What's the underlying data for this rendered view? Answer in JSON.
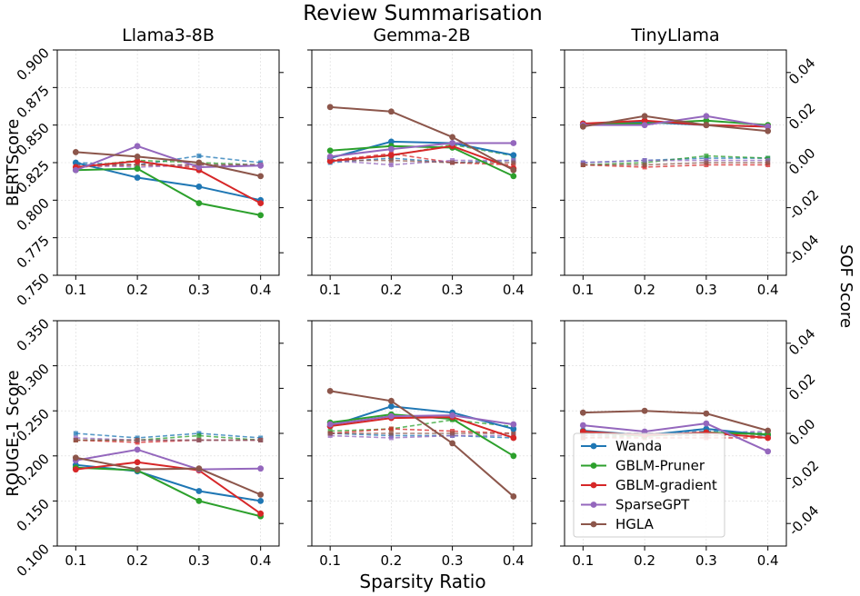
{
  "title": "Review Summarisation",
  "xlabel": "Sparsity Ratio",
  "right_label": "SOF Score",
  "methods": [
    {
      "name": "Wanda",
      "color": "#1f77b4"
    },
    {
      "name": "GBLM-Pruner",
      "color": "#2ca02c"
    },
    {
      "name": "GBLM-gradient",
      "color": "#d62728"
    },
    {
      "name": "SparseGPT",
      "color": "#9467bd"
    },
    {
      "name": "HGLA",
      "color": "#8c564b"
    }
  ],
  "chart_data": {
    "type": "line",
    "x": [
      0.1,
      0.2,
      0.3,
      0.4
    ],
    "x_ticks": [
      "0.1",
      "0.2",
      "0.3",
      "0.4"
    ],
    "col_titles": [
      "Llama3-8B",
      "Gemma-2B",
      "TinyLlama"
    ],
    "rows": [
      {
        "ylabel": "BERTScore",
        "ylim": [
          0.75,
          0.9
        ],
        "y_ticks": [
          "0.750",
          "0.775",
          "0.800",
          "0.825",
          "0.850",
          "0.875",
          "0.900"
        ],
        "y_tick_values": [
          0.75,
          0.775,
          0.8,
          0.825,
          0.85,
          0.875,
          0.9
        ],
        "sof_ylim": [
          -0.05,
          0.05
        ],
        "sof_ticks": [
          "-0.04",
          "-0.02",
          "0.00",
          "0.02",
          "0.04"
        ],
        "sof_tick_values": [
          -0.04,
          -0.02,
          0.0,
          0.02,
          0.04
        ],
        "panels": [
          {
            "series": [
              {
                "name": "Wanda",
                "values": [
                  0.825,
                  0.815,
                  0.809,
                  0.8
                ]
              },
              {
                "name": "GBLM-Pruner",
                "values": [
                  0.82,
                  0.821,
                  0.798,
                  0.79
                ]
              },
              {
                "name": "GBLM-gradient",
                "values": [
                  0.822,
                  0.826,
                  0.82,
                  0.798
                ]
              },
              {
                "name": "SparseGPT",
                "values": [
                  0.82,
                  0.836,
                  0.822,
                  0.823
                ]
              },
              {
                "name": "HGLA",
                "values": [
                  0.832,
                  0.829,
                  0.825,
                  0.816
                ]
              }
            ],
            "sof": [
              {
                "name": "Wanda",
                "values": [
                  0.0,
                  -0.001,
                  0.003,
                  0.0
                ]
              },
              {
                "name": "GBLM-Pruner",
                "values": [
                  -0.002,
                  0.001,
                  0.0,
                  -0.001
                ]
              },
              {
                "name": "GBLM-gradient",
                "values": [
                  -0.002,
                  -0.001,
                  -0.002,
                  -0.001
                ]
              },
              {
                "name": "SparseGPT",
                "values": [
                  -0.001,
                  -0.002,
                  -0.001,
                  -0.001
                ]
              },
              {
                "name": "HGLA",
                "values": [
                  -0.001,
                  -0.001,
                  -0.001,
                  -0.001
                ]
              }
            ]
          },
          {
            "series": [
              {
                "name": "Wanda",
                "values": [
                  0.828,
                  0.839,
                  0.838,
                  0.83
                ]
              },
              {
                "name": "GBLM-Pruner",
                "values": [
                  0.833,
                  0.836,
                  0.835,
                  0.816
                ]
              },
              {
                "name": "GBLM-gradient",
                "values": [
                  0.826,
                  0.83,
                  0.836,
                  0.821
                ]
              },
              {
                "name": "SparseGPT",
                "values": [
                  0.829,
                  0.834,
                  0.838,
                  0.838
                ]
              },
              {
                "name": "HGLA",
                "values": [
                  0.862,
                  0.859,
                  0.842,
                  0.82
                ]
              }
            ],
            "sof": [
              {
                "name": "Wanda",
                "values": [
                  0.0,
                  0.002,
                  0.0,
                  0.001
                ]
              },
              {
                "name": "GBLM-Pruner",
                "values": [
                  0.001,
                  0.003,
                  0.008,
                  0.003
                ]
              },
              {
                "name": "GBLM-gradient",
                "values": [
                  0.001,
                  0.004,
                  0.0,
                  -0.001
                ]
              },
              {
                "name": "SparseGPT",
                "values": [
                  0.001,
                  -0.001,
                  0.001,
                  0.001
                ]
              },
              {
                "name": "HGLA",
                "values": [
                  0.001,
                  0.001,
                  0.0,
                  0.0
                ]
              }
            ]
          },
          {
            "series": [
              {
                "name": "Wanda",
                "values": [
                  0.85,
                  0.852,
                  0.85,
                  0.849
                ]
              },
              {
                "name": "GBLM-Pruner",
                "values": [
                  0.851,
                  0.851,
                  0.853,
                  0.85
                ]
              },
              {
                "name": "GBLM-gradient",
                "values": [
                  0.851,
                  0.853,
                  0.85,
                  0.849
                ]
              },
              {
                "name": "SparseGPT",
                "values": [
                  0.85,
                  0.85,
                  0.856,
                  0.849
                ]
              },
              {
                "name": "HGLA",
                "values": [
                  0.849,
                  0.856,
                  0.85,
                  0.846
                ]
              }
            ],
            "sof": [
              {
                "name": "Wanda",
                "values": [
                  0.0,
                  0.001,
                  0.002,
                  0.002
                ]
              },
              {
                "name": "GBLM-Pruner",
                "values": [
                  -0.001,
                  0.0,
                  0.003,
                  0.002
                ]
              },
              {
                "name": "GBLM-gradient",
                "values": [
                  -0.001,
                  -0.002,
                  -0.001,
                  -0.001
                ]
              },
              {
                "name": "SparseGPT",
                "values": [
                  0.0,
                  0.001,
                  0.001,
                  0.001
                ]
              },
              {
                "name": "HGLA",
                "values": [
                  -0.001,
                  -0.001,
                  0.0,
                  0.0
                ]
              }
            ]
          }
        ]
      },
      {
        "ylabel": "ROUGE-1 Score",
        "ylim": [
          0.1,
          0.35
        ],
        "y_ticks": [
          "0.100",
          "0.150",
          "0.200",
          "0.250",
          "0.300",
          "0.350"
        ],
        "y_tick_values": [
          0.1,
          0.15,
          0.2,
          0.25,
          0.3,
          0.35
        ],
        "sof_ylim": [
          -0.05,
          0.05
        ],
        "sof_ticks": [
          "-0.04",
          "-0.02",
          "0.00",
          "0.02",
          "0.04"
        ],
        "sof_tick_values": [
          -0.04,
          -0.02,
          0.0,
          0.02,
          0.04
        ],
        "panels": [
          {
            "series": [
              {
                "name": "Wanda",
                "values": [
                  0.19,
                  0.183,
                  0.161,
                  0.15
                ]
              },
              {
                "name": "GBLM-Pruner",
                "values": [
                  0.187,
                  0.184,
                  0.15,
                  0.133
                ]
              },
              {
                "name": "GBLM-gradient",
                "values": [
                  0.185,
                  0.193,
                  0.184,
                  0.136
                ]
              },
              {
                "name": "SparseGPT",
                "values": [
                  0.195,
                  0.207,
                  0.185,
                  0.186
                ]
              },
              {
                "name": "HGLA",
                "values": [
                  0.198,
                  0.185,
                  0.186,
                  0.157
                ]
              }
            ],
            "sof": [
              {
                "name": "Wanda",
                "values": [
                  0.0,
                  -0.002,
                  0.0,
                  -0.002
                ]
              },
              {
                "name": "GBLM-Pruner",
                "values": [
                  -0.003,
                  -0.003,
                  -0.001,
                  -0.003
                ]
              },
              {
                "name": "GBLM-gradient",
                "values": [
                  -0.003,
                  -0.004,
                  -0.003,
                  -0.003
                ]
              },
              {
                "name": "SparseGPT",
                "values": [
                  -0.002,
                  -0.003,
                  -0.003,
                  -0.003
                ]
              },
              {
                "name": "HGLA",
                "values": [
                  -0.003,
                  -0.003,
                  -0.003,
                  -0.003
                ]
              }
            ]
          },
          {
            "series": [
              {
                "name": "Wanda",
                "values": [
                  0.233,
                  0.255,
                  0.248,
                  0.23
                ]
              },
              {
                "name": "GBLM-Pruner",
                "values": [
                  0.237,
                  0.246,
                  0.241,
                  0.2
                ]
              },
              {
                "name": "GBLM-gradient",
                "values": [
                  0.233,
                  0.242,
                  0.243,
                  0.22
                ]
              },
              {
                "name": "SparseGPT",
                "values": [
                  0.235,
                  0.244,
                  0.245,
                  0.235
                ]
              },
              {
                "name": "HGLA",
                "values": [
                  0.272,
                  0.261,
                  0.214,
                  0.155
                ]
              }
            ],
            "sof": [
              {
                "name": "Wanda",
                "values": [
                  0.0,
                  -0.001,
                  -0.001,
                  -0.002
                ]
              },
              {
                "name": "GBLM-Pruner",
                "values": [
                  0.001,
                  0.002,
                  0.006,
                  0.003
                ]
              },
              {
                "name": "GBLM-gradient",
                "values": [
                  0.0,
                  0.002,
                  0.001,
                  0.0
                ]
              },
              {
                "name": "SparseGPT",
                "values": [
                  -0.001,
                  -0.002,
                  -0.001,
                  -0.001
                ]
              },
              {
                "name": "HGLA",
                "values": [
                  0.0,
                  0.0,
                  0.0,
                  0.0
                ]
              }
            ]
          },
          {
            "series": [
              {
                "name": "Wanda",
                "values": [
                  0.228,
                  0.223,
                  0.23,
                  0.223
                ]
              },
              {
                "name": "GBLM-Pruner",
                "values": [
                  0.227,
                  0.222,
                  0.226,
                  0.224
                ]
              },
              {
                "name": "GBLM-gradient",
                "values": [
                  0.227,
                  0.223,
                  0.226,
                  0.22
                ]
              },
              {
                "name": "SparseGPT",
                "values": [
                  0.234,
                  0.227,
                  0.236,
                  0.205
                ]
              },
              {
                "name": "HGLA",
                "values": [
                  0.248,
                  0.25,
                  0.247,
                  0.228
                ]
              }
            ],
            "sof": [
              {
                "name": "Wanda",
                "values": [
                  0.0,
                  -0.001,
                  0.001,
                  0.0
                ]
              },
              {
                "name": "GBLM-Pruner",
                "values": [
                  -0.002,
                  -0.001,
                  0.0,
                  0.0
                ]
              },
              {
                "name": "GBLM-gradient",
                "values": [
                  -0.002,
                  -0.002,
                  -0.002,
                  -0.002
                ]
              },
              {
                "name": "SparseGPT",
                "values": [
                  0.0,
                  0.0,
                  0.0,
                  0.001
                ]
              },
              {
                "name": "HGLA",
                "values": [
                  -0.001,
                  -0.001,
                  -0.001,
                  -0.001
                ]
              }
            ]
          }
        ]
      }
    ],
    "legend": {
      "location": "bottom-right panel, lower-left corner"
    }
  }
}
